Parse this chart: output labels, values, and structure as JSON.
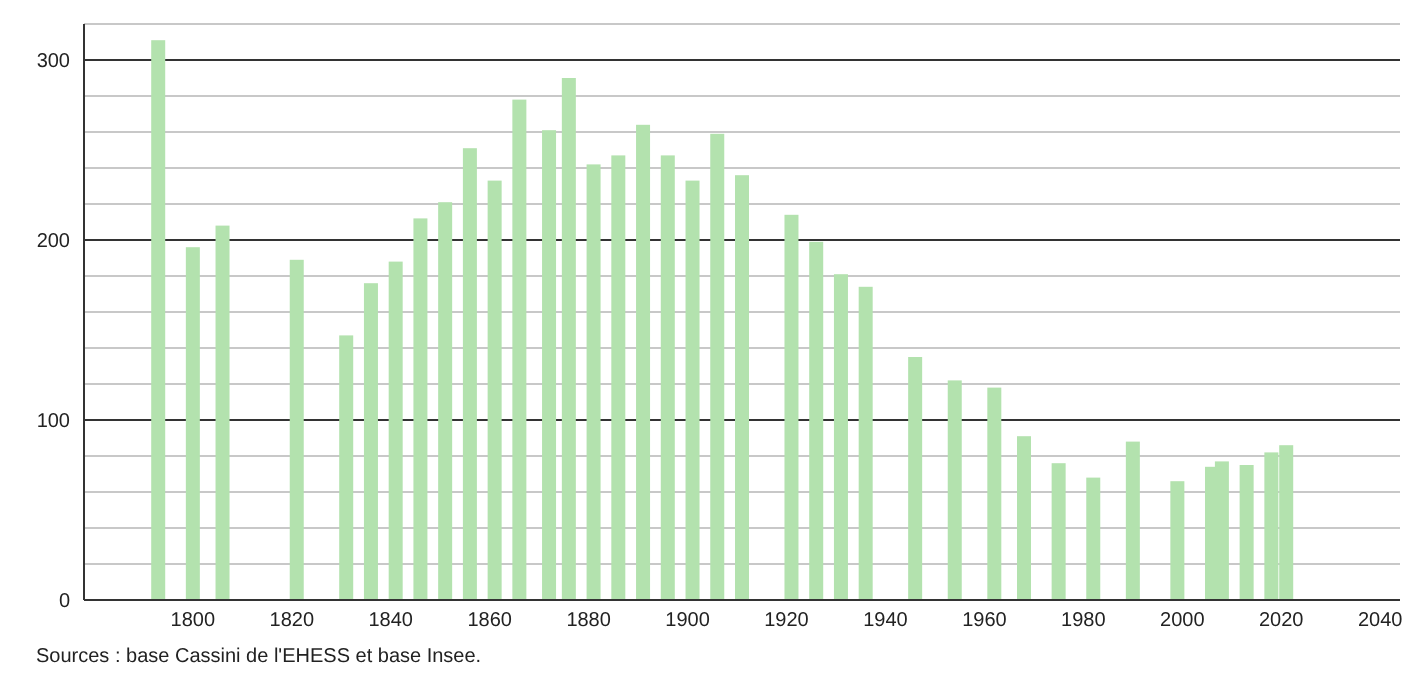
{
  "chart_data": {
    "type": "bar",
    "x": [
      1793,
      1800,
      1806,
      1821,
      1831,
      1836,
      1841,
      1846,
      1851,
      1856,
      1861,
      1866,
      1872,
      1876,
      1881,
      1886,
      1891,
      1896,
      1901,
      1906,
      1911,
      1921,
      1926,
      1931,
      1936,
      1946,
      1954,
      1962,
      1968,
      1975,
      1982,
      1990,
      1999,
      2006,
      2008,
      2013,
      2018,
      2021
    ],
    "values": [
      311,
      196,
      208,
      189,
      147,
      176,
      188,
      212,
      221,
      251,
      233,
      278,
      261,
      290,
      242,
      247,
      264,
      247,
      233,
      259,
      236,
      214,
      199,
      181,
      174,
      135,
      122,
      118,
      91,
      76,
      68,
      88,
      66,
      74,
      77,
      75,
      82,
      86
    ],
    "color": "#b3e2ae",
    "xlim": [
      1778,
      2044
    ],
    "xticks": [
      1800,
      1820,
      1840,
      1860,
      1880,
      1900,
      1920,
      1940,
      1960,
      1980,
      2000,
      2020,
      2040
    ],
    "ylim": [
      0,
      320
    ],
    "yticks": [
      0,
      {
        "value": 20,
        "label": null
      },
      {
        "value": 40,
        "label": null
      },
      {
        "value": 60,
        "label": null
      },
      {
        "value": 80,
        "label": null
      },
      100,
      {
        "value": 120,
        "label": null
      },
      {
        "value": 140,
        "label": null
      },
      {
        "value": 160,
        "label": null
      },
      {
        "value": 180,
        "label": null
      },
      200,
      {
        "value": 220,
        "label": null
      },
      {
        "value": 240,
        "label": null
      },
      {
        "value": 260,
        "label": null
      },
      {
        "value": 280,
        "label": null
      },
      300,
      {
        "value": 320,
        "label": null
      }
    ],
    "grid": "y",
    "annotations": [
      "Sources : base Cassini de l'EHESS et base Insee."
    ]
  }
}
